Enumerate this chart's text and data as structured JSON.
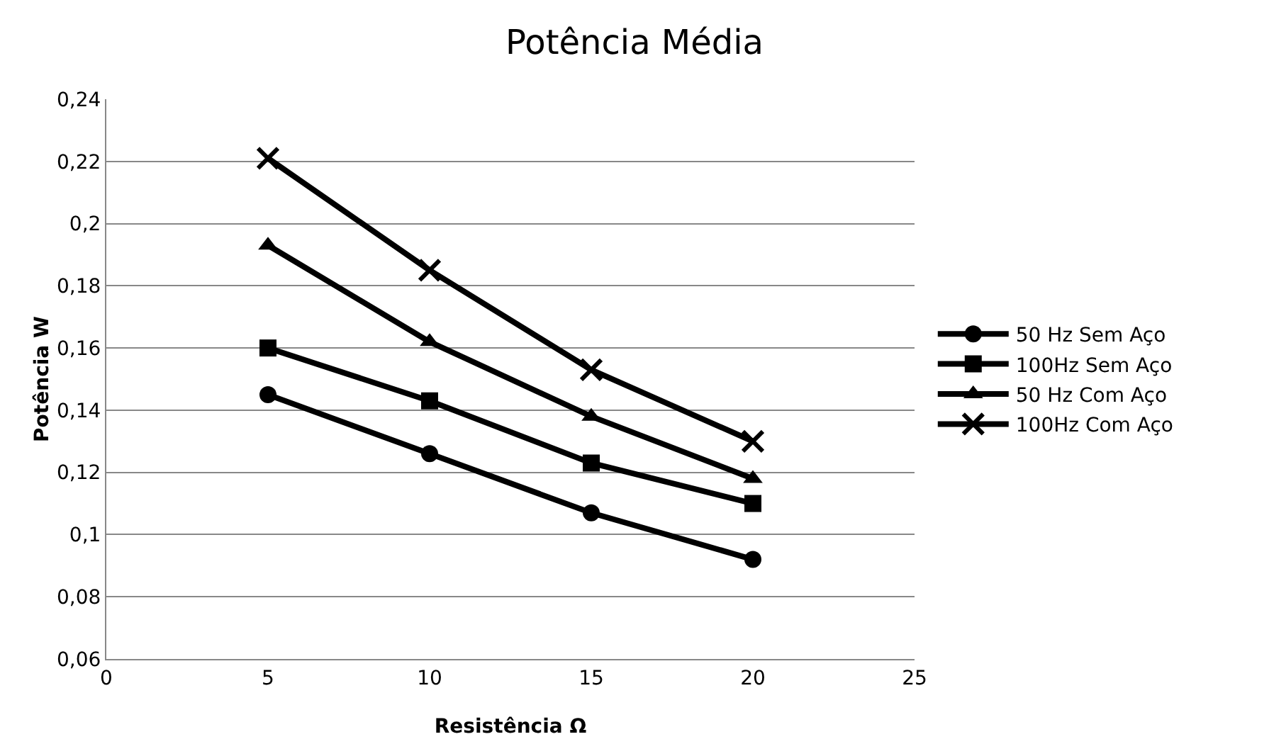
{
  "chart_data": {
    "type": "line",
    "title": "Potência Média",
    "xlabel": "Resistência Ω",
    "ylabel": "Potência W",
    "x": [
      5,
      10,
      15,
      20
    ],
    "series": [
      {
        "name": "50 Hz Sem Aço",
        "color": "#000000",
        "marker": "circle",
        "values": [
          0.145,
          0.126,
          0.107,
          0.092
        ]
      },
      {
        "name": "100Hz Sem Aço",
        "color": "#000000",
        "marker": "square",
        "values": [
          0.16,
          0.143,
          0.123,
          0.11
        ]
      },
      {
        "name": "50 Hz Com Aço",
        "color": "#000000",
        "marker": "triangle",
        "values": [
          0.193,
          0.162,
          0.138,
          0.118
        ]
      },
      {
        "name": "100Hz Com Aço",
        "color": "#000000",
        "marker": "cross",
        "values": [
          0.221,
          0.185,
          0.153,
          0.13
        ]
      }
    ],
    "xlim": [
      0,
      25
    ],
    "xticks": [
      0,
      5,
      10,
      15,
      20,
      25
    ],
    "ylim": [
      0.06,
      0.24
    ],
    "yticks": [
      {
        "value": 0.06,
        "label": "0,06"
      },
      {
        "value": 0.08,
        "label": "0,08"
      },
      {
        "value": 0.1,
        "label": "0,1"
      },
      {
        "value": 0.12,
        "label": "0,12"
      },
      {
        "value": 0.14,
        "label": "0,14"
      },
      {
        "value": 0.16,
        "label": "0,16"
      },
      {
        "value": 0.18,
        "label": "0,18"
      },
      {
        "value": 0.2,
        "label": "0,2"
      },
      {
        "value": 0.22,
        "label": "0,22"
      },
      {
        "value": 0.24,
        "label": "0,24"
      }
    ],
    "grid": "y",
    "legend": "right",
    "line_style": "solid"
  }
}
